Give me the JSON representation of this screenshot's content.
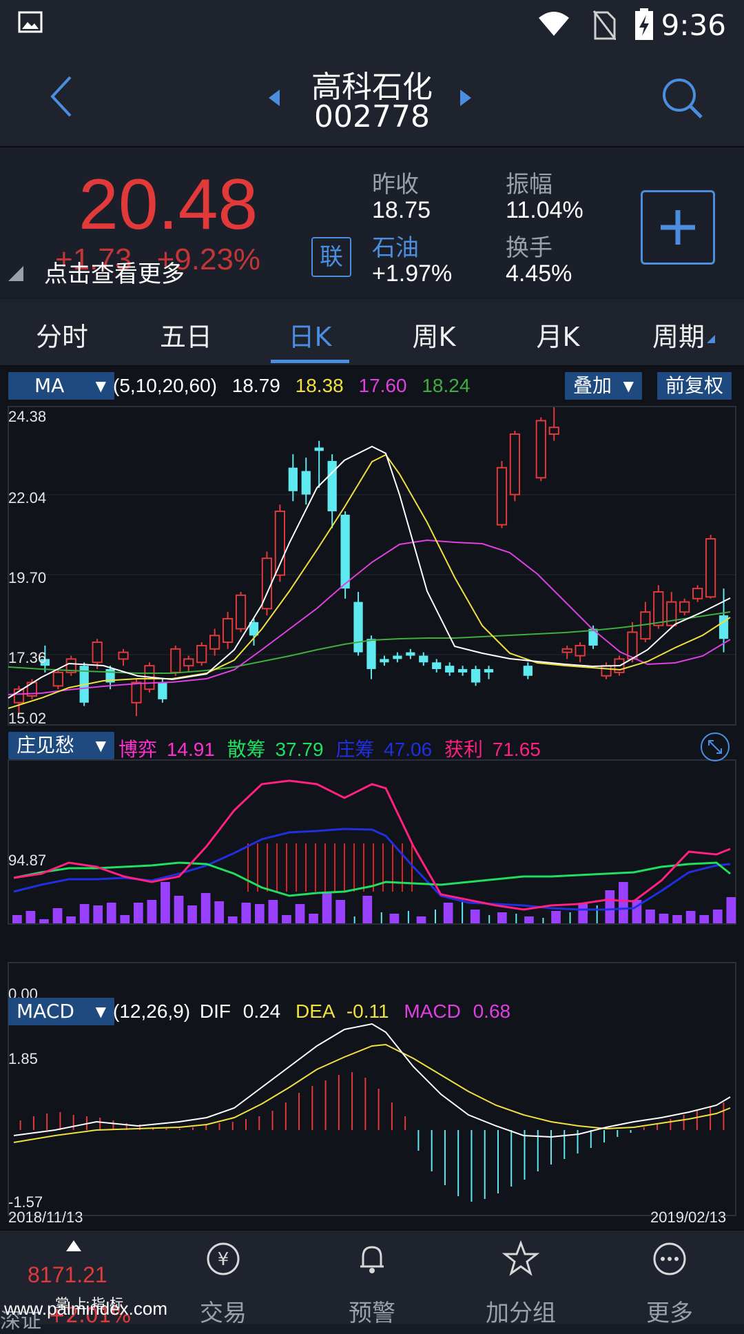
{
  "status": {
    "time": "9:36"
  },
  "header": {
    "name": "高科石化",
    "code": "002778"
  },
  "quote": {
    "price": "20.48",
    "change": "+1.73",
    "change_pct": "+9.23%",
    "tip": "点击查看更多",
    "lian": "联",
    "prev_close_label": "昨收",
    "prev_close": "18.75",
    "amplitude_label": "振幅",
    "amplitude": "11.04%",
    "sector_label": "石油",
    "sector_change": "+1.97%",
    "turnover_label": "换手",
    "turnover": "4.45%"
  },
  "tabs": [
    "分时",
    "五日",
    "日K",
    "周K",
    "月K",
    "周期"
  ],
  "active_tab": "日K",
  "ma": {
    "selector": "MA",
    "params": "(5,10,20,60)",
    "v5": "18.79",
    "v10": "18.38",
    "v20": "17.60",
    "v60": "18.24",
    "overlay_label": "叠加",
    "adjust_label": "前复权",
    "colors": {
      "ma5": "#ffffff",
      "ma10": "#f0e040",
      "ma20": "#e040e0",
      "ma60": "#3fae3f",
      "up": "#e23a3a",
      "down": "#5ee8f0"
    }
  },
  "kline_axis": {
    "max": "24.38",
    "l1": "22.04",
    "l2": "19.70",
    "l3": "17.36",
    "min": "15.02"
  },
  "zj": {
    "selector": "庄见愁",
    "boyi_label": "博弈",
    "boyi": "14.91",
    "sanchou_label": "散筹",
    "sanchou": "37.79",
    "zhuangchou_label": "庄筹",
    "zhuangchou": "47.06",
    "huoli_label": "获利",
    "huoli": "71.65",
    "max": "94.87",
    "min": "0.00"
  },
  "macd": {
    "selector": "MACD",
    "params": "(12,26,9)",
    "dif_label": "DIF",
    "dif": "0.24",
    "dea_label": "DEA",
    "dea": "-0.11",
    "macd_label": "MACD",
    "macd": "0.68",
    "max": "1.85",
    "min": "-1.57"
  },
  "dates": {
    "start": "2018/11/13",
    "end": "2019/02/13"
  },
  "bottom_nav": {
    "index_value": "8171.21",
    "index_name": "深证",
    "index_change": "+2.01%",
    "watermark": "www.palmindex.com",
    "brand": "掌 上 指 标",
    "items": [
      "交易",
      "预警",
      "加分组",
      "更多"
    ]
  },
  "chart_data": {
    "type": "candlestick",
    "y_range": [
      15.02,
      24.38
    ],
    "candles_up": [
      [
        15.6,
        16.0,
        15.3,
        16.1
      ],
      [
        15.8,
        16.2,
        15.7,
        16.3
      ],
      [
        16.1,
        16.5,
        16.0,
        16.6
      ],
      [
        16.5,
        16.9,
        16.4,
        17.0
      ],
      [
        16.8,
        17.4,
        16.6,
        17.5
      ],
      [
        16.9,
        17.1,
        16.7,
        17.2
      ],
      [
        15.6,
        16.2,
        15.2,
        16.3
      ],
      [
        16.0,
        16.7,
        15.9,
        16.8
      ],
      [
        16.5,
        17.2,
        16.4,
        17.3
      ],
      [
        16.7,
        16.9,
        16.5,
        17.0
      ],
      [
        16.8,
        17.3,
        16.7,
        17.4
      ],
      [
        17.2,
        17.6,
        17.0,
        17.8
      ],
      [
        17.4,
        18.1,
        17.2,
        18.3
      ],
      [
        17.8,
        18.8,
        17.7,
        18.9
      ],
      [
        18.4,
        19.9,
        18.2,
        20.1
      ],
      [
        19.4,
        21.3,
        19.2,
        21.5
      ],
      [
        20.9,
        22.6,
        20.8,
        22.8
      ],
      [
        21.8,
        23.6,
        21.6,
        23.7
      ],
      [
        22.3,
        24.0,
        22.2,
        24.1
      ],
      [
        23.6,
        23.8,
        23.4,
        24.4
      ],
      [
        17.1,
        17.2,
        16.9,
        17.3
      ],
      [
        17.0,
        17.3,
        16.8,
        17.4
      ],
      [
        16.4,
        16.7,
        16.3,
        16.8
      ],
      [
        16.5,
        16.9,
        16.4,
        17.0
      ],
      [
        16.9,
        17.7,
        16.8,
        18.0
      ],
      [
        17.5,
        18.3,
        17.4,
        18.6
      ],
      [
        17.9,
        18.9,
        17.8,
        19.1
      ],
      [
        17.9,
        18.6,
        17.8,
        18.9
      ],
      [
        18.3,
        18.6,
        18.2,
        18.7
      ],
      [
        18.7,
        19.0,
        18.6,
        19.1
      ],
      [
        18.75,
        20.48,
        18.7,
        20.6
      ]
    ],
    "candles_down": [
      [
        16.9,
        16.7,
        16.5,
        17.3
      ],
      [
        16.7,
        15.6,
        15.5,
        16.8
      ],
      [
        16.6,
        16.2,
        16.0,
        16.7
      ],
      [
        16.2,
        15.7,
        15.6,
        16.3
      ],
      [
        18.0,
        17.6,
        17.3,
        18.1
      ],
      [
        22.6,
        21.9,
        21.6,
        23.0
      ],
      [
        22.5,
        21.8,
        21.5,
        22.9
      ],
      [
        23.2,
        23.1,
        22.0,
        23.4
      ],
      [
        22.8,
        21.3,
        20.8,
        23.0
      ],
      [
        21.2,
        19.0,
        18.7,
        21.3
      ],
      [
        18.6,
        17.1,
        17.0,
        18.9
      ],
      [
        17.5,
        16.6,
        16.3,
        17.6
      ],
      [
        16.9,
        16.8,
        16.7,
        17.0
      ],
      [
        17.0,
        16.9,
        16.8,
        17.1
      ],
      [
        17.1,
        17.0,
        16.9,
        17.2
      ],
      [
        17.0,
        16.8,
        16.7,
        17.1
      ],
      [
        16.8,
        16.6,
        16.5,
        16.9
      ],
      [
        16.7,
        16.5,
        16.4,
        16.8
      ],
      [
        16.6,
        16.5,
        16.4,
        16.7
      ],
      [
        16.6,
        16.2,
        16.1,
        16.7
      ],
      [
        16.6,
        16.5,
        16.3,
        16.7
      ],
      [
        16.7,
        16.4,
        16.3,
        16.8
      ],
      [
        17.8,
        17.3,
        17.2,
        17.9
      ],
      [
        18.2,
        17.5,
        17.1,
        19.0
      ]
    ]
  }
}
